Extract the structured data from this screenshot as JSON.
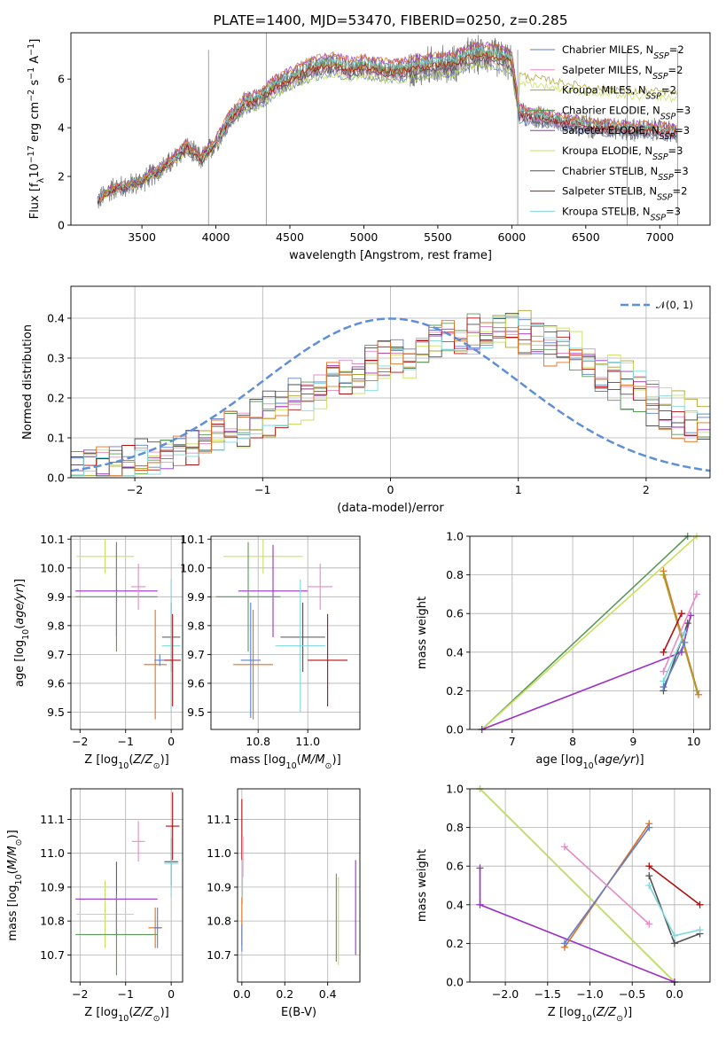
{
  "colors": {
    "chabrier_miles": "#5f7fc9",
    "salpeter_miles": "#e58bc4",
    "kroupa_miles": "#a8a030",
    "chabrier_elodie": "#5a9a5a",
    "salpeter_elodie": "#9b30c8",
    "kroupa_elodie": "#c8e060",
    "chabrier_stelib": "#505050",
    "salpeter_stelib": "#b01010",
    "kroupa_stelib": "#7ed7de",
    "extra_orange": "#e07020",
    "normal_dashed": "#5f8fd6",
    "spectrum": "#7a7a7a"
  },
  "chart_data": [
    {
      "id": "spectrum",
      "type": "line",
      "title": "PLATE=1400, MJD=53470, FIBERID=0250, z=0.285",
      "xlabel": "wavelength [Angstrom, rest frame]",
      "ylabel": "Flux [f_λ10^-17 erg cm^-2 s^-1 A^-1]",
      "xlim": [
        3020,
        7340
      ],
      "ylim": [
        0,
        7.9
      ],
      "xticks": [
        3500,
        4000,
        4500,
        5000,
        5500,
        6000,
        6500,
        7000
      ],
      "yticks": [
        0,
        2,
        4,
        6
      ],
      "grid": false,
      "legend_position": "right",
      "legend": [
        {
          "name": "Chabrier MILES, N_SSP=2",
          "color_key": "chabrier_miles"
        },
        {
          "name": "Salpeter MILES, N_SSP=2",
          "color_key": "salpeter_miles"
        },
        {
          "name": "Kroupa MILES, N_SSP=2",
          "color_key": "kroupa_miles"
        },
        {
          "name": "Chabrier ELODIE, N_SSP=3",
          "color_key": "chabrier_elodie"
        },
        {
          "name": "Salpeter ELODIE, N_SSP=3",
          "color_key": "salpeter_elodie"
        },
        {
          "name": "Kroupa ELODIE, N_SSP=3",
          "color_key": "kroupa_elodie"
        },
        {
          "name": "Chabrier STELIB, N_SSP=3",
          "color_key": "chabrier_stelib"
        },
        {
          "name": "Salpeter STELIB, N_SSP=2",
          "color_key": "salpeter_stelib"
        },
        {
          "name": "Kroupa STELIB, N_SSP=3",
          "color_key": "kroupa_stelib"
        }
      ],
      "continuum": {
        "x": [
          3200,
          3300,
          3400,
          3500,
          3600,
          3700,
          3800,
          3900,
          4000,
          4100,
          4200,
          4300,
          4400,
          4500,
          4600,
          4700,
          4800,
          4900,
          5000,
          5100,
          5200,
          5300,
          5400,
          5500,
          5600,
          5700,
          5800,
          5900,
          6000,
          6050,
          6100,
          6200,
          6300,
          6400,
          6500,
          6600,
          6700,
          6800,
          6900,
          7000,
          7100
        ],
        "y": [
          1.0,
          1.5,
          1.6,
          1.8,
          2.2,
          2.6,
          3.2,
          2.7,
          3.4,
          4.4,
          5.0,
          5.2,
          5.7,
          6.0,
          6.3,
          6.5,
          6.6,
          6.4,
          6.5,
          6.4,
          6.3,
          6.4,
          6.5,
          6.6,
          6.6,
          6.9,
          7.0,
          6.9,
          6.7,
          4.6,
          4.5,
          4.4,
          4.3,
          4.2,
          4.1,
          4.0,
          4.0,
          3.9,
          3.9,
          3.9,
          3.8
        ]
      }
    },
    {
      "id": "residuals",
      "type": "line",
      "xlabel": "(data-model)/error",
      "ylabel": "Normed distribution",
      "xlim": [
        -2.5,
        2.5
      ],
      "ylim": [
        0,
        0.48
      ],
      "xticks": [
        -2,
        -1,
        0,
        1,
        2
      ],
      "yticks": [
        0.0,
        0.1,
        0.2,
        0.3,
        0.4
      ],
      "grid": true,
      "legend_position": "top-right",
      "legend": [
        {
          "name": "𝒩(0, 1)",
          "color_key": "normal_dashed"
        }
      ],
      "normal_mu": 0,
      "normal_sigma": 1,
      "hist_bins": [
        -2.5,
        2.5,
        50
      ],
      "hist_shape_x": [
        -2.5,
        -2.0,
        -1.5,
        -1.0,
        -0.5,
        0.0,
        0.5,
        1.0,
        1.5,
        2.0,
        2.5
      ],
      "hist_shape_y": [
        0.02,
        0.04,
        0.08,
        0.14,
        0.24,
        0.29,
        0.35,
        0.38,
        0.3,
        0.2,
        0.12
      ]
    },
    {
      "id": "age_vs_Z",
      "type": "scatter",
      "xlabel": "Z [log10(Z/Z⊙)]",
      "ylabel": "age  [log10(age/yr)]",
      "xlim": [
        -2.2,
        0.25
      ],
      "ylim": [
        9.44,
        10.11
      ],
      "xticks": [
        -2,
        -1,
        0
      ],
      "yticks": [
        9.5,
        9.6,
        9.7,
        9.8,
        9.9,
        10.0,
        10.1
      ],
      "grid": true,
      "points": [
        {
          "x": -1.45,
          "y": 10.04,
          "xerr": 0.63,
          "yerr": 0.06,
          "color_key": "kroupa_elodie"
        },
        {
          "x": -1.2,
          "y": 9.92,
          "xerr": 0.9,
          "yerr": 0.16,
          "color_key": "salpeter_elodie"
        },
        {
          "x": -1.2,
          "y": 9.9,
          "xerr": 0.9,
          "yerr": 0.19,
          "color_key": "chabrier_elodie"
        },
        {
          "x": -0.72,
          "y": 9.935,
          "xerr": 0.16,
          "yerr": 0.08,
          "color_key": "salpeter_miles"
        },
        {
          "x": -0.35,
          "y": 9.665,
          "xerr": 0.25,
          "yerr": 0.19,
          "color_key": "extra_orange"
        },
        {
          "x": -0.25,
          "y": 9.68,
          "xerr": 0.12,
          "yerr": 0.02,
          "color_key": "chabrier_miles"
        },
        {
          "x": 0.0,
          "y": 9.76,
          "xerr": 0.2,
          "yerr": 0.12,
          "color_key": "chabrier_stelib"
        },
        {
          "x": 0.0,
          "y": 9.73,
          "xerr": 0.2,
          "yerr": 0.23,
          "color_key": "kroupa_stelib"
        },
        {
          "x": 0.03,
          "y": 9.68,
          "xerr": 0.18,
          "yerr": 0.16,
          "color_key": "salpeter_stelib"
        }
      ]
    },
    {
      "id": "age_vs_mass",
      "type": "scatter",
      "xlabel": "mass [log10(M/M⊙)]",
      "ylabel": "",
      "xlim": [
        10.61,
        11.21
      ],
      "ylim": [
        9.44,
        10.11
      ],
      "xticks": [
        10.8,
        11.0
      ],
      "yticks": [
        9.5,
        9.6,
        9.7,
        9.8,
        9.9,
        10.0,
        10.1
      ],
      "grid": true,
      "points": [
        {
          "x": 10.82,
          "y": 10.04,
          "xerr": 0.16,
          "yerr": 0.06,
          "color_key": "kroupa_elodie"
        },
        {
          "x": 10.86,
          "y": 9.92,
          "xerr": 0.14,
          "yerr": 0.16,
          "color_key": "salpeter_elodie"
        },
        {
          "x": 10.76,
          "y": 9.9,
          "xerr": 0.13,
          "yerr": 0.19,
          "color_key": "chabrier_elodie"
        },
        {
          "x": 11.05,
          "y": 9.935,
          "xerr": 0.05,
          "yerr": 0.08,
          "color_key": "salpeter_miles"
        },
        {
          "x": 10.78,
          "y": 9.665,
          "xerr": 0.08,
          "yerr": 0.19,
          "color_key": "extra_orange"
        },
        {
          "x": 10.77,
          "y": 9.68,
          "xerr": 0.04,
          "yerr": 0.2,
          "color_key": "chabrier_miles"
        },
        {
          "x": 10.98,
          "y": 9.76,
          "xerr": 0.09,
          "yerr": 0.12,
          "color_key": "chabrier_stelib"
        },
        {
          "x": 10.97,
          "y": 9.73,
          "xerr": 0.1,
          "yerr": 0.23,
          "color_key": "kroupa_stelib"
        },
        {
          "x": 11.08,
          "y": 9.68,
          "xerr": 0.08,
          "yerr": 0.16,
          "color_key": "salpeter_stelib"
        }
      ]
    },
    {
      "id": "weight_vs_age",
      "type": "line",
      "xlabel": "age  [log10(age/yr)]",
      "ylabel": "mass weight",
      "xlim": [
        6.3,
        10.27
      ],
      "ylim": [
        0.0,
        1.0
      ],
      "xticks": [
        7,
        8,
        9,
        10
      ],
      "yticks": [
        0.0,
        0.2,
        0.4,
        0.6,
        0.8,
        1.0
      ],
      "grid": true,
      "series": [
        {
          "color_key": "chabrier_elodie",
          "x": [
            6.5,
            9.9
          ],
          "y": [
            0.0,
            1.0
          ]
        },
        {
          "color_key": "kroupa_elodie",
          "x": [
            6.5,
            10.05
          ],
          "y": [
            0.0,
            1.0
          ]
        },
        {
          "color_key": "salpeter_elodie",
          "x": [
            6.5,
            9.8,
            9.95
          ],
          "y": [
            0.0,
            0.4,
            0.59
          ]
        },
        {
          "color_key": "extra_orange",
          "x": [
            9.5,
            10.08
          ],
          "y": [
            0.82,
            0.18
          ]
        },
        {
          "color_key": "kroupa_miles",
          "x": [
            9.5,
            10.05
          ],
          "y": [
            0.8,
            0.2
          ]
        },
        {
          "color_key": "salpeter_stelib",
          "x": [
            9.5,
            9.8
          ],
          "y": [
            0.4,
            0.6
          ]
        },
        {
          "color_key": "chabrier_stelib",
          "x": [
            9.5,
            9.9
          ],
          "y": [
            0.2,
            0.55
          ]
        },
        {
          "color_key": "kroupa_stelib",
          "x": [
            9.5,
            9.85
          ],
          "y": [
            0.25,
            0.5
          ]
        },
        {
          "color_key": "salpeter_miles",
          "x": [
            9.5,
            10.05
          ],
          "y": [
            0.3,
            0.7
          ]
        },
        {
          "color_key": "chabrier_miles",
          "x": [
            9.5,
            9.85
          ],
          "y": [
            0.22,
            0.45
          ]
        }
      ]
    },
    {
      "id": "mass_vs_Z",
      "type": "scatter",
      "xlabel": "Z [log10(Z/Z⊙)]",
      "ylabel": "mass [log10(M/M⊙)]",
      "xlim": [
        -2.2,
        0.25
      ],
      "ylim": [
        10.62,
        11.19
      ],
      "xticks": [
        -2,
        -1,
        0
      ],
      "yticks": [
        10.7,
        10.8,
        10.9,
        11.0,
        11.1
      ],
      "grid": true,
      "points": [
        {
          "x": -1.45,
          "y": 10.82,
          "xerr": 0.63,
          "yerr": 0.1,
          "color_key": "kroupa_elodie"
        },
        {
          "x": -1.2,
          "y": 10.865,
          "xerr": 0.9,
          "yerr": 0.11,
          "color_key": "salpeter_elodie"
        },
        {
          "x": -1.2,
          "y": 10.76,
          "xerr": 0.9,
          "yerr": 0.12,
          "color_key": "chabrier_elodie"
        },
        {
          "x": -0.72,
          "y": 11.035,
          "xerr": 0.14,
          "yerr": 0.06,
          "color_key": "salpeter_miles"
        },
        {
          "x": -0.35,
          "y": 10.78,
          "xerr": 0.15,
          "yerr": 0.06,
          "color_key": "extra_orange"
        },
        {
          "x": -0.3,
          "y": 10.78,
          "xerr": 0.08,
          "yerr": 0.06,
          "color_key": "chabrier_miles"
        },
        {
          "x": 0.0,
          "y": 10.975,
          "xerr": 0.15,
          "yerr": 0.07,
          "color_key": "chabrier_stelib"
        },
        {
          "x": 0.0,
          "y": 10.97,
          "xerr": 0.15,
          "yerr": 0.1,
          "color_key": "kroupa_stelib"
        },
        {
          "x": 0.03,
          "y": 11.08,
          "xerr": 0.15,
          "yerr": 0.1,
          "color_key": "salpeter_stelib"
        }
      ]
    },
    {
      "id": "mass_vs_EBV",
      "type": "scatter",
      "xlabel": "E(B-V)",
      "ylabel": "",
      "xlim": [
        -0.02,
        0.55
      ],
      "ylim": [
        10.62,
        11.19
      ],
      "xticks": [
        0.0,
        0.2,
        0.4
      ],
      "yticks": [
        10.7,
        10.8,
        10.9,
        11.0,
        11.1
      ],
      "grid": true,
      "points": [
        {
          "x": 0.0,
          "y": 11.07,
          "yerr": 0.09,
          "color_key": "salpeter_stelib"
        },
        {
          "x": 0.0,
          "y": 10.8,
          "yerr": 0.07,
          "color_key": "extra_orange"
        },
        {
          "x": 0.0,
          "y": 10.75,
          "yerr": 0.04,
          "color_key": "chabrier_miles"
        },
        {
          "x": 0.005,
          "y": 10.99,
          "yerr": 0.06,
          "color_key": "salpeter_miles"
        },
        {
          "x": 0.003,
          "y": 10.95,
          "yerr": 0.1,
          "color_key": "kroupa_stelib"
        },
        {
          "x": 0.44,
          "y": 10.81,
          "yerr": 0.13,
          "color_key": "chabrier_elodie"
        },
        {
          "x": 0.45,
          "y": 10.8,
          "yerr": 0.13,
          "color_key": "kroupa_elodie"
        },
        {
          "x": 0.53,
          "y": 10.84,
          "yerr": 0.14,
          "color_key": "salpeter_elodie"
        }
      ]
    },
    {
      "id": "weight_vs_Z",
      "type": "line",
      "xlabel": "Z [log10(Z/Z⊙)]",
      "ylabel": "mass weight",
      "xlim": [
        -2.42,
        0.42
      ],
      "ylim": [
        0.0,
        1.0
      ],
      "xticks": [
        -2.0,
        -1.5,
        -1.0,
        -0.5,
        0.0
      ],
      "yticks": [
        0.0,
        0.2,
        0.4,
        0.6,
        0.8,
        1.0
      ],
      "grid": true,
      "series": [
        {
          "color_key": "chabrier_elodie",
          "x": [
            -2.3,
            0.0
          ],
          "y": [
            1.0,
            0.0
          ]
        },
        {
          "color_key": "kroupa_elodie",
          "x": [
            -2.3,
            0.0
          ],
          "y": [
            1.0,
            0.0
          ]
        },
        {
          "color_key": "salpeter_elodie",
          "x": [
            -2.3,
            -2.3,
            0.0
          ],
          "y": [
            0.59,
            0.4,
            0.0
          ]
        },
        {
          "color_key": "extra_orange",
          "x": [
            -1.3,
            -0.3
          ],
          "y": [
            0.18,
            0.82
          ]
        },
        {
          "color_key": "chabrier_miles",
          "x": [
            -1.3,
            -0.3
          ],
          "y": [
            0.2,
            0.8
          ]
        },
        {
          "color_key": "salpeter_miles",
          "x": [
            -1.3,
            -0.3
          ],
          "y": [
            0.7,
            0.3
          ]
        },
        {
          "color_key": "salpeter_stelib",
          "x": [
            -0.3,
            0.3
          ],
          "y": [
            0.6,
            0.4
          ]
        },
        {
          "color_key": "chabrier_stelib",
          "x": [
            -0.3,
            0.0,
            0.3
          ],
          "y": [
            0.55,
            0.2,
            0.25
          ]
        },
        {
          "color_key": "kroupa_stelib",
          "x": [
            -0.3,
            0.0,
            0.3
          ],
          "y": [
            0.5,
            0.24,
            0.27
          ]
        }
      ]
    }
  ]
}
